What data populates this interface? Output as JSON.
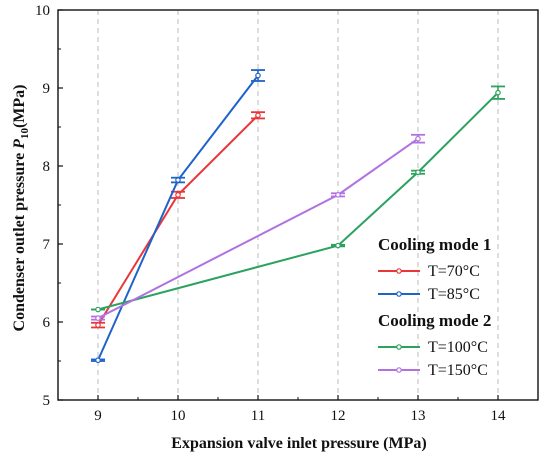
{
  "chart_data": {
    "type": "line",
    "xlabel": "Expansion valve inlet pressure (MPa)",
    "ylabel_main": "Condenser outlet pressure ",
    "ylabel_symbol": "P",
    "ylabel_sub": "10",
    "ylabel_unit": "(MPa)",
    "xlim": [
      8.5,
      14.5
    ],
    "ylim": [
      5,
      10
    ],
    "xticks": [
      9,
      10,
      11,
      12,
      13,
      14
    ],
    "yticks": [
      5,
      6,
      7,
      8,
      9,
      10
    ],
    "grid": "vertical dashed",
    "legend_placement": "right",
    "legend_groups": [
      {
        "title": "Cooling mode 1",
        "series_index": [
          0,
          1
        ]
      },
      {
        "title": "Cooling mode 2",
        "series_index": [
          2,
          3
        ]
      }
    ],
    "series": [
      {
        "name": "T=70°C",
        "color": "#e8373a",
        "x": [
          9,
          10,
          11
        ],
        "y": [
          5.96,
          7.63,
          8.65
        ],
        "err": [
          0.03,
          0.04,
          0.04
        ]
      },
      {
        "name": "T=85°C",
        "color": "#1f63c9",
        "x": [
          9,
          10,
          11
        ],
        "y": [
          5.51,
          7.82,
          9.16
        ],
        "err": [
          0.01,
          0.03,
          0.07
        ]
      },
      {
        "name": "T=100°C",
        "color": "#2ca25f",
        "x": [
          9,
          12,
          13,
          14
        ],
        "y": [
          6.16,
          6.98,
          7.92,
          8.94
        ],
        "err": [
          0.0,
          0.01,
          0.02,
          0.08
        ]
      },
      {
        "name": "T=150°C",
        "color": "#b072e0",
        "x": [
          9,
          12,
          13
        ],
        "y": [
          6.05,
          7.63,
          8.35
        ],
        "err": [
          0.02,
          0.02,
          0.05
        ]
      }
    ]
  }
}
